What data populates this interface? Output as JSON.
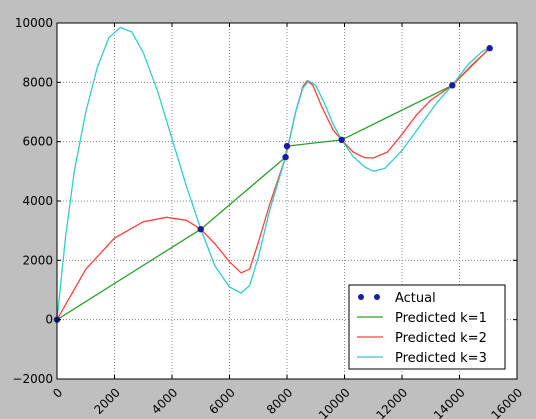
{
  "chart_data": {
    "type": "line",
    "xlim": [
      0,
      16000
    ],
    "ylim": [
      -2000,
      10000
    ],
    "x_ticks": [
      0,
      2000,
      4000,
      6000,
      8000,
      10000,
      12000,
      14000,
      16000
    ],
    "y_ticks": [
      -2000,
      0,
      2000,
      4000,
      6000,
      8000,
      10000
    ],
    "x_tick_labels": [
      "0",
      "2000",
      "4000",
      "6000",
      "8000",
      "10000",
      "12000",
      "14000",
      "16000"
    ],
    "y_tick_labels": [
      "−2000",
      "0",
      "2000",
      "4000",
      "6000",
      "8000",
      "10000"
    ],
    "grid": true,
    "legend_position": "lower-right",
    "series": [
      {
        "name": "Actual",
        "kind": "scatter",
        "color": "#1a1aa6",
        "x": [
          0,
          5000,
          7950,
          8000,
          9900,
          13750,
          15050
        ],
        "y": [
          0,
          3050,
          5480,
          5850,
          6060,
          7900,
          9150
        ]
      },
      {
        "name": "Predicted k=1",
        "kind": "line",
        "color": "#2ca02c",
        "x": [
          0,
          5000,
          7950,
          8000,
          9900,
          13750,
          15050
        ],
        "y": [
          0,
          3050,
          5480,
          5850,
          6060,
          7900,
          9150
        ]
      },
      {
        "name": "Predicted k=2",
        "kind": "line",
        "color": "#ff4040",
        "x": [
          0,
          1000,
          2000,
          3000,
          3800,
          4500,
          5000,
          5500,
          6000,
          6400,
          6700,
          7000,
          7400,
          7950,
          8300,
          8550,
          8700,
          8900,
          9200,
          9600,
          9900,
          10300,
          10700,
          11000,
          11500,
          12000,
          12500,
          13000,
          13750,
          14400,
          15050
        ],
        "y": [
          0,
          1700,
          2750,
          3300,
          3450,
          3350,
          3050,
          2550,
          1950,
          1580,
          1700,
          2600,
          3900,
          5480,
          7000,
          7850,
          8050,
          7900,
          7200,
          6400,
          6060,
          5650,
          5460,
          5450,
          5650,
          6250,
          6900,
          7400,
          7900,
          8550,
          9150
        ]
      },
      {
        "name": "Predicted k=3",
        "kind": "line",
        "color": "#33cccc",
        "x": [
          0,
          300,
          600,
          1000,
          1400,
          1800,
          2200,
          2600,
          3000,
          3500,
          4000,
          4500,
          5000,
          5500,
          6000,
          6400,
          6700,
          7000,
          7400,
          7950,
          8300,
          8550,
          8750,
          9000,
          9300,
          9600,
          9900,
          10300,
          10700,
          11000,
          11400,
          12000,
          12600,
          13200,
          13750,
          14300,
          14800,
          15050
        ],
        "y": [
          0,
          2800,
          5000,
          7000,
          8500,
          9500,
          9850,
          9700,
          9000,
          7700,
          6100,
          4500,
          3050,
          1800,
          1100,
          900,
          1150,
          2100,
          3700,
          5480,
          7000,
          7800,
          8050,
          7900,
          7300,
          6600,
          6060,
          5500,
          5150,
          5000,
          5100,
          5700,
          6500,
          7300,
          7900,
          8600,
          9050,
          9150
        ]
      }
    ]
  }
}
